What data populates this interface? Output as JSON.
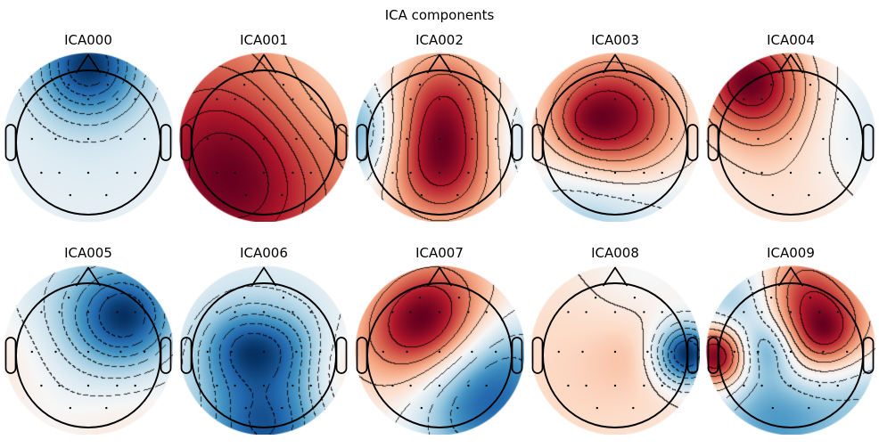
{
  "figure": {
    "title": "ICA components",
    "background": "#ffffff"
  },
  "chart_data": {
    "type": "heatmap",
    "subtype": "eeg-ica-topomap-grid",
    "title": "ICA components",
    "grid": {
      "rows": 2,
      "cols": 5
    },
    "colormap": {
      "name": "RdBu_r",
      "stops": [
        "#053061",
        "#2166ac",
        "#4393c3",
        "#92c5de",
        "#d1e5f0",
        "#f7f7f7",
        "#fddbc7",
        "#f4a582",
        "#d6604d",
        "#b2182b",
        "#67001f"
      ]
    },
    "outline_color": "#000000",
    "sensor_color": "#111111",
    "contour_line_count": 6,
    "contour_style": {
      "positive": "solid",
      "negative": "dashed"
    },
    "electrodes": [
      [
        -0.27,
        0.8
      ],
      [
        0.27,
        0.8
      ],
      [
        -0.65,
        0.6
      ],
      [
        -0.4,
        0.6
      ],
      [
        0.0,
        0.6
      ],
      [
        0.4,
        0.6
      ],
      [
        0.65,
        0.6
      ],
      [
        -0.78,
        0.05
      ],
      [
        -0.45,
        0.05
      ],
      [
        0.0,
        0.05
      ],
      [
        0.45,
        0.05
      ],
      [
        0.78,
        0.05
      ],
      [
        -0.65,
        -0.42
      ],
      [
        -0.4,
        -0.42
      ],
      [
        0.0,
        -0.42
      ],
      [
        0.4,
        -0.42
      ],
      [
        0.65,
        -0.42
      ],
      [
        -0.25,
        -0.73
      ],
      [
        0.25,
        -0.73
      ]
    ],
    "components": [
      {
        "label": "ICA000",
        "pattern": "strong frontal negativity (dark blue at top), near-zero pale field elsewhere, dashed frontal contours",
        "sources": [
          [
            0,
            1.08,
            0.5,
            -1.0
          ],
          [
            0,
            0.3,
            1.5,
            -0.15
          ]
        ]
      },
      {
        "label": "ICA001",
        "pattern": "broad positivity over whole scalp, darkest red at left/bottom-left, lighter top-right, many solid contours",
        "sources": [
          [
            0,
            0,
            2.5,
            0.78
          ],
          [
            -0.6,
            -0.25,
            0.9,
            0.5
          ],
          [
            -0.25,
            -0.9,
            0.7,
            0.2
          ],
          [
            1.0,
            0.85,
            0.9,
            -0.38
          ]
        ]
      },
      {
        "label": "ICA002",
        "pattern": "strong central midline positivity (dark red core), negative blue left temporal edge, light blue right edge",
        "sources": [
          [
            0.02,
            0.1,
            0.62,
            1.0
          ],
          [
            0,
            -0.55,
            0.55,
            0.55
          ],
          [
            0.05,
            0.85,
            0.5,
            0.4
          ],
          [
            -1.12,
            0.15,
            0.5,
            -0.8
          ],
          [
            1.15,
            0.05,
            0.5,
            -0.45
          ]
        ]
      },
      {
        "label": "ICA003",
        "pattern": "broad fronto-central positivity slightly left (dark red with small inner peak), light blue posterior-left",
        "sources": [
          [
            -0.2,
            0.4,
            0.62,
            1.0
          ],
          [
            0.25,
            0.25,
            0.6,
            0.6
          ],
          [
            -0.45,
            0.28,
            0.28,
            0.25
          ],
          [
            -0.35,
            -1.05,
            0.65,
            -0.55
          ],
          [
            0.9,
            -0.75,
            0.6,
            -0.15
          ]
        ]
      },
      {
        "label": "ICA004",
        "pattern": "tight dark-red left-frontal pole, pale pink body, faint blue right hemisphere edge",
        "sources": [
          [
            -0.62,
            0.9,
            0.5,
            1.1
          ],
          [
            -0.2,
            0.55,
            0.6,
            0.35
          ],
          [
            0.95,
            0.2,
            0.7,
            -0.3
          ],
          [
            0.1,
            -0.6,
            1.0,
            0.22
          ]
        ]
      },
      {
        "label": "ICA005",
        "pattern": "right-frontal negativity (dark blue), dashed contours over frontal half, faint orange left and bottom edges",
        "sources": [
          [
            0.55,
            0.55,
            0.48,
            -1.0
          ],
          [
            -0.05,
            0.5,
            0.75,
            -0.45
          ],
          [
            -1.05,
            -0.05,
            0.6,
            0.25
          ],
          [
            0.3,
            -1.05,
            0.8,
            0.18
          ],
          [
            -0.5,
            -0.6,
            0.7,
            -0.08
          ]
        ]
      },
      {
        "label": "ICA006",
        "pattern": "widespread negativity: two central blue lobes (left darker) and very dark occipital region, faint orange right-temporal edge",
        "sources": [
          [
            -0.33,
            0.12,
            0.38,
            -0.75
          ],
          [
            0.3,
            0.1,
            0.38,
            -0.55
          ],
          [
            0,
            -1.0,
            0.6,
            -1.15
          ],
          [
            -0.1,
            0.55,
            0.9,
            -0.25
          ],
          [
            1.1,
            -0.25,
            0.45,
            0.3
          ],
          [
            -1.0,
            -0.4,
            0.5,
            -0.1
          ]
        ]
      },
      {
        "label": "ICA007",
        "pattern": "dipolar: dark red left-fronto-central blob vs dark blue right-posterior region, white diagonal zero band",
        "sources": [
          [
            -0.22,
            0.5,
            0.5,
            1.05
          ],
          [
            -0.7,
            0.1,
            0.6,
            0.45
          ],
          [
            0.25,
            1.0,
            0.6,
            0.4
          ],
          [
            0.55,
            -0.75,
            0.6,
            -1.05
          ],
          [
            1.1,
            -0.1,
            0.5,
            -0.5
          ]
        ]
      },
      {
        "label": "ICA008",
        "pattern": "focal dark-blue right-temporal (ear) negativity with dashed rings, light salmon positivity elsewhere",
        "sources": [
          [
            0.98,
            0.02,
            0.3,
            -1.1
          ],
          [
            -0.3,
            -0.1,
            1.4,
            0.22
          ],
          [
            0.2,
            0.05,
            0.35,
            0.1
          ],
          [
            0.3,
            1.05,
            0.6,
            -0.14
          ]
        ]
      },
      {
        "label": "ICA009",
        "pattern": "focal dark-red left-ear positivity plus right-frontal red blob, blue patches left-central, posterior and top-left",
        "sources": [
          [
            -1.02,
            0,
            0.32,
            1.15
          ],
          [
            0.38,
            0.38,
            0.55,
            0.9
          ],
          [
            0.48,
            0.3,
            0.25,
            0.2
          ],
          [
            -0.33,
            0.1,
            0.28,
            -0.5
          ],
          [
            -0.15,
            -0.8,
            0.7,
            -0.6
          ],
          [
            -0.75,
            0.68,
            0.45,
            -0.4
          ],
          [
            1.1,
            -0.5,
            0.5,
            -0.3
          ],
          [
            0.08,
            1.1,
            0.4,
            0.3
          ]
        ]
      }
    ]
  }
}
